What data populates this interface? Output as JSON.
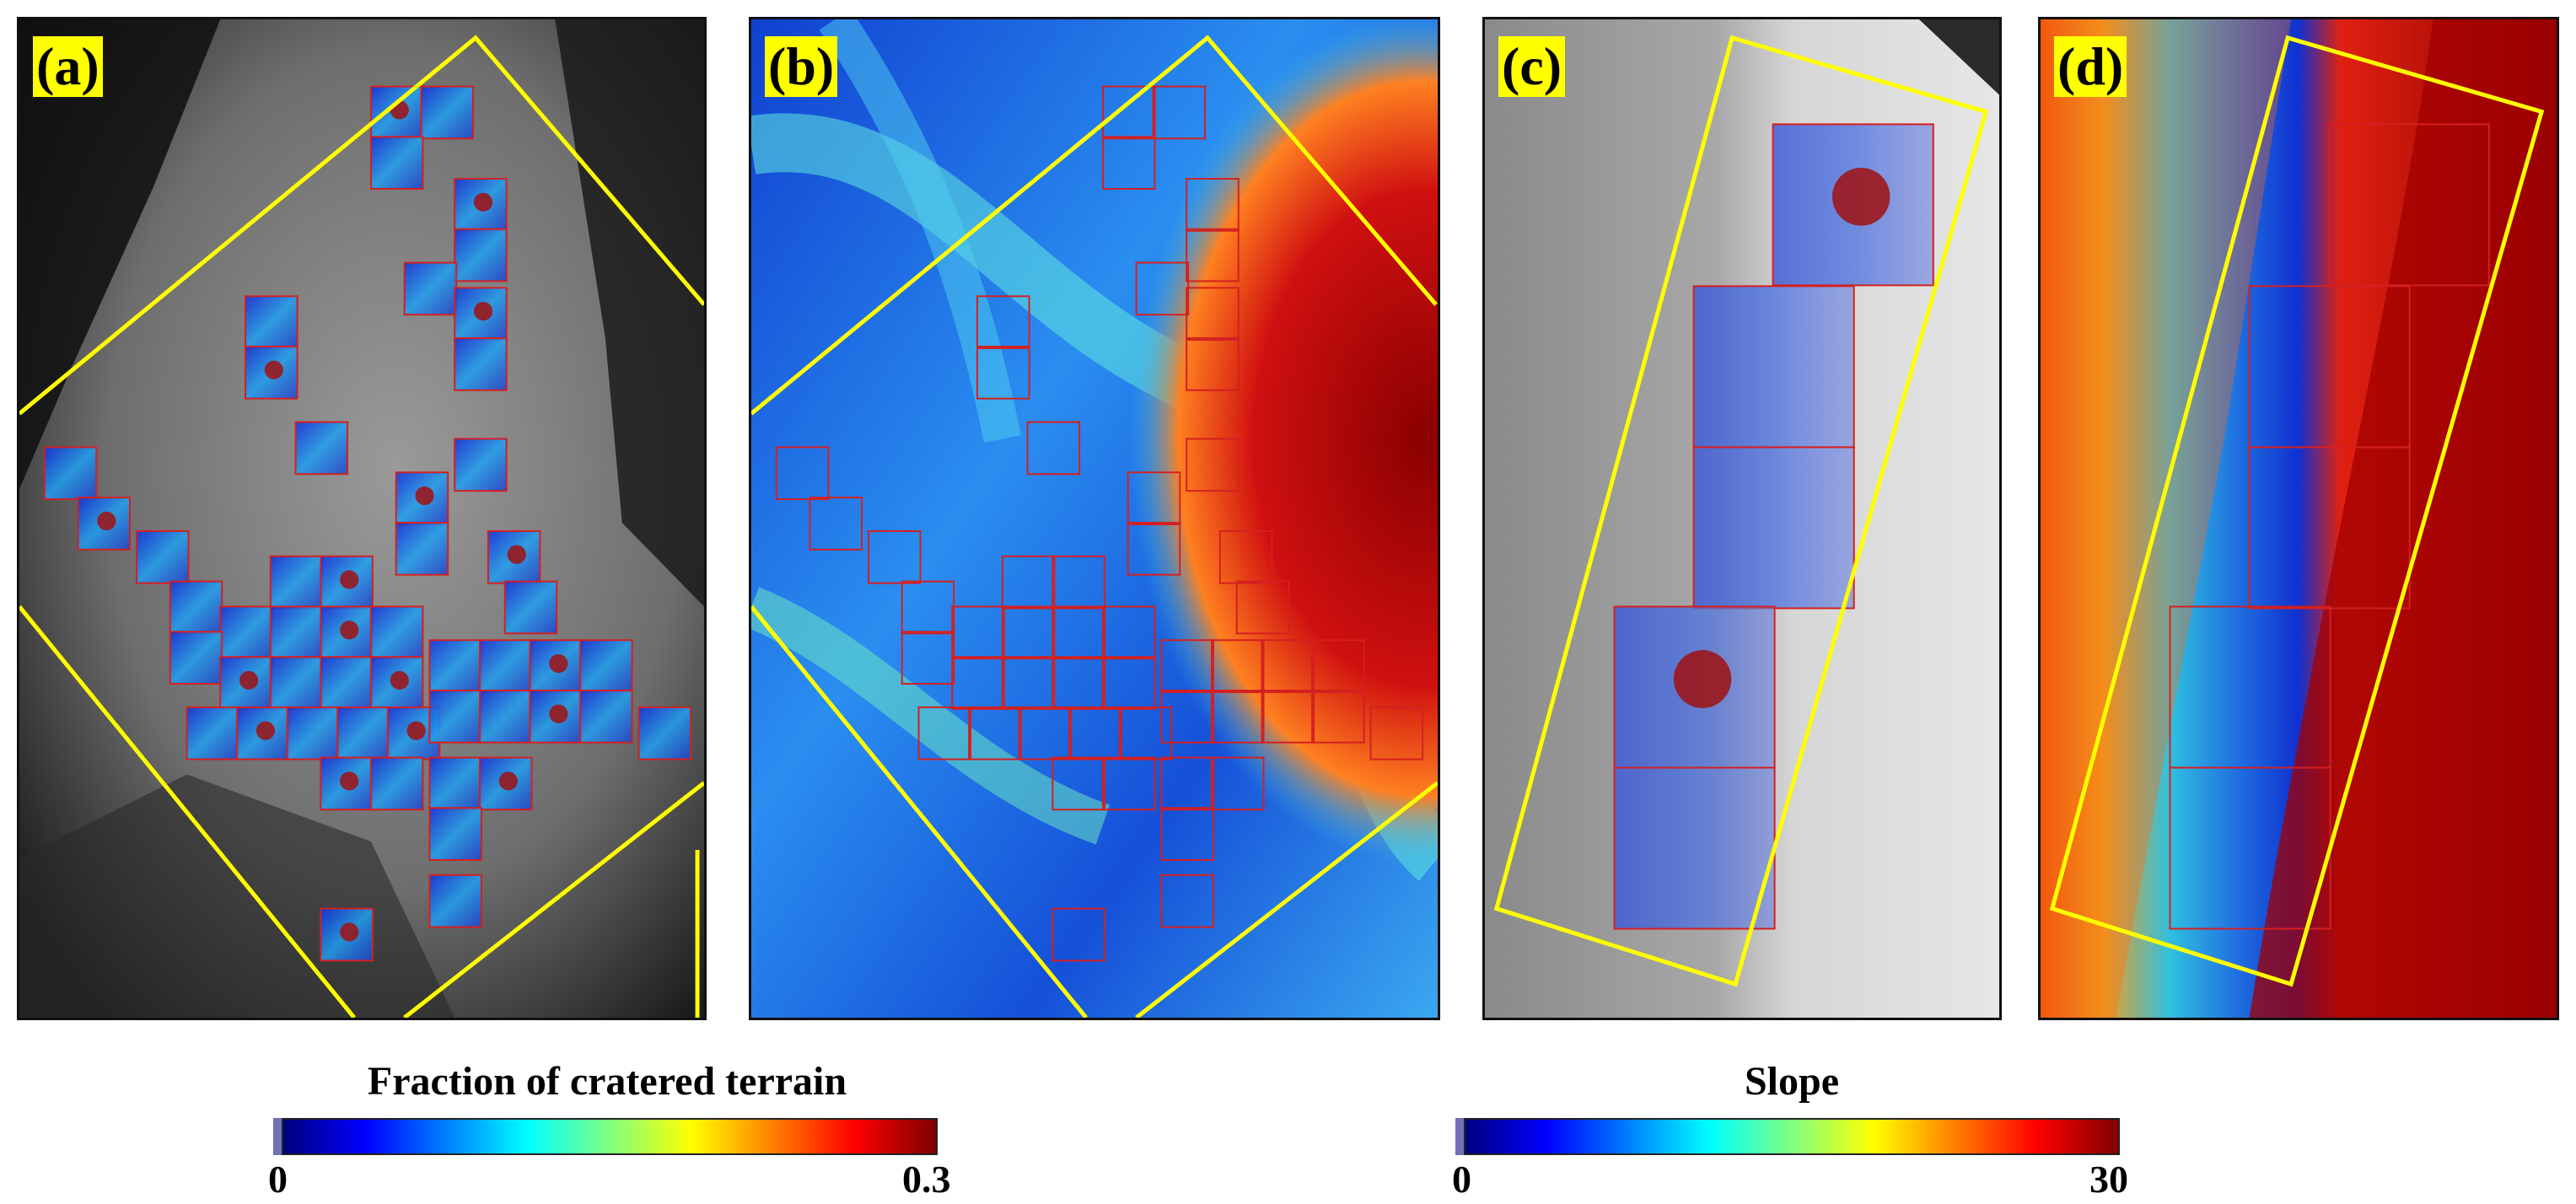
{
  "panels": [
    {
      "id": "a",
      "label": "(a)"
    },
    {
      "id": "b",
      "label": "(b)"
    },
    {
      "id": "c",
      "label": "(c)"
    },
    {
      "id": "d",
      "label": "(d)"
    }
  ],
  "colorbars": {
    "cratered": {
      "title": "Fraction of cratered terrain",
      "min": "0",
      "max": "0.3"
    },
    "slope": {
      "title": "Slope",
      "min": "0",
      "max": "30"
    }
  },
  "colors": {
    "outline": "#ffff00",
    "tile_border": "#d42020",
    "jet": [
      "#00007f",
      "#0000ff",
      "#007fff",
      "#00ffff",
      "#7fff7f",
      "#ffff00",
      "#ff7f00",
      "#ff0000",
      "#7f0000"
    ]
  }
}
